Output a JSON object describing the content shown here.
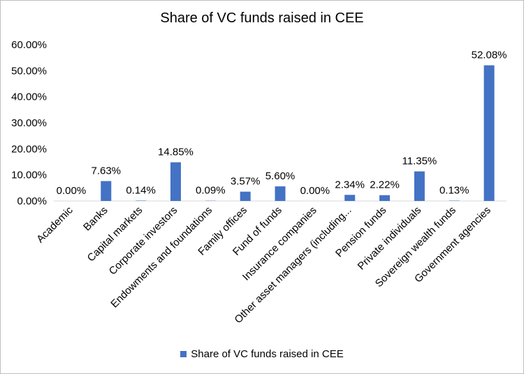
{
  "chart_data": {
    "type": "bar",
    "title": "Share of VC funds raised in CEE",
    "xlabel": "",
    "ylabel": "",
    "ylim": [
      0,
      60
    ],
    "yticks": [
      "0.00%",
      "10.00%",
      "20.00%",
      "30.00%",
      "40.00%",
      "50.00%",
      "60.00%"
    ],
    "categories": [
      "Academic",
      "Banks",
      "Capital markets",
      "Corporate investors",
      "Endowments and foundations",
      "Family offices",
      "Fund of funds",
      "Insurance companies",
      "Other asset managers (including...",
      "Pension funds",
      "Private individuals",
      "Sovereign wealth funds",
      "Government agencies"
    ],
    "series": [
      {
        "name": "Share of VC funds raised in CEE",
        "values": [
          0.0,
          7.63,
          0.14,
          14.85,
          0.09,
          3.57,
          5.6,
          0.0,
          2.34,
          2.22,
          11.35,
          0.13,
          52.08
        ],
        "labels": [
          "0.00%",
          "7.63%",
          "0.14%",
          "14.85%",
          "0.09%",
          "3.57%",
          "5.60%",
          "0.00%",
          "2.34%",
          "2.22%",
          "11.35%",
          "0.13%",
          "52.08%"
        ]
      }
    ],
    "grid": false,
    "legend": "bottom",
    "colors": {
      "bar": "#4472c4",
      "text": "#000000",
      "axis": "#d9d9d9"
    }
  }
}
